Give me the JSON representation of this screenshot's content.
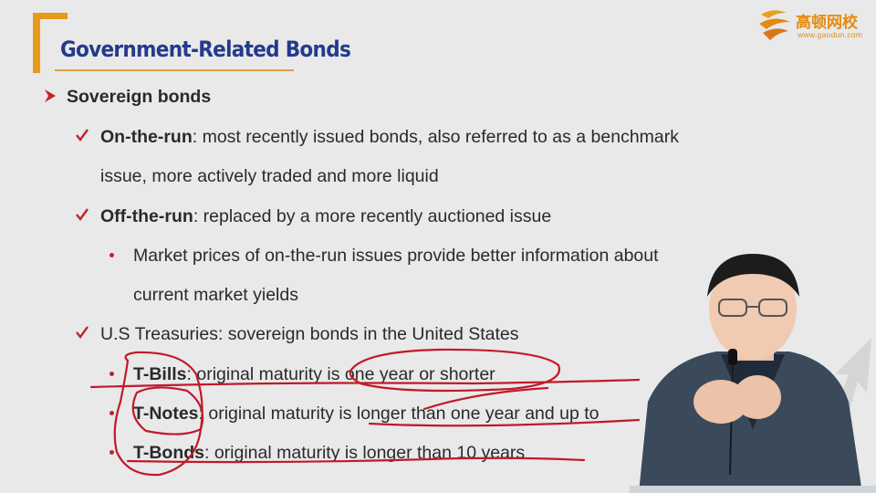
{
  "title": "Government-Related Bonds",
  "logo": {
    "name": "高顿网校",
    "url": "www.gaodun.com"
  },
  "content": {
    "l1_sovereign": "Sovereign bonds",
    "otr_term": "On-the-run",
    "otr_desc": ": most recently issued bonds, also referred to as a benchmark",
    "otr_desc2": "issue, more actively traded and more liquid",
    "offtr_term": "Off-the-run",
    "offtr_desc": ": replaced by a more recently auctioned issue",
    "offtr_bullet": "Market prices of on-the-run issues provide better information about",
    "offtr_bullet2": "current market yields",
    "ust": "U.S Treasuries: sovereign bonds in the United States",
    "tbills_term": "T-Bills",
    "tbills_desc": ": original maturity is one year or shorter",
    "tnotes_term": "T-Notes",
    "tnotes_desc": ": original maturity is longer than one year and up to",
    "tbonds_term": "T-Bonds",
    "tbonds_desc": ": original maturity is longer than 10 years"
  },
  "colors": {
    "title": "#243a8c",
    "accent": "#e69a18",
    "bullet": "#c0242b",
    "ink": "#c01a2a"
  }
}
